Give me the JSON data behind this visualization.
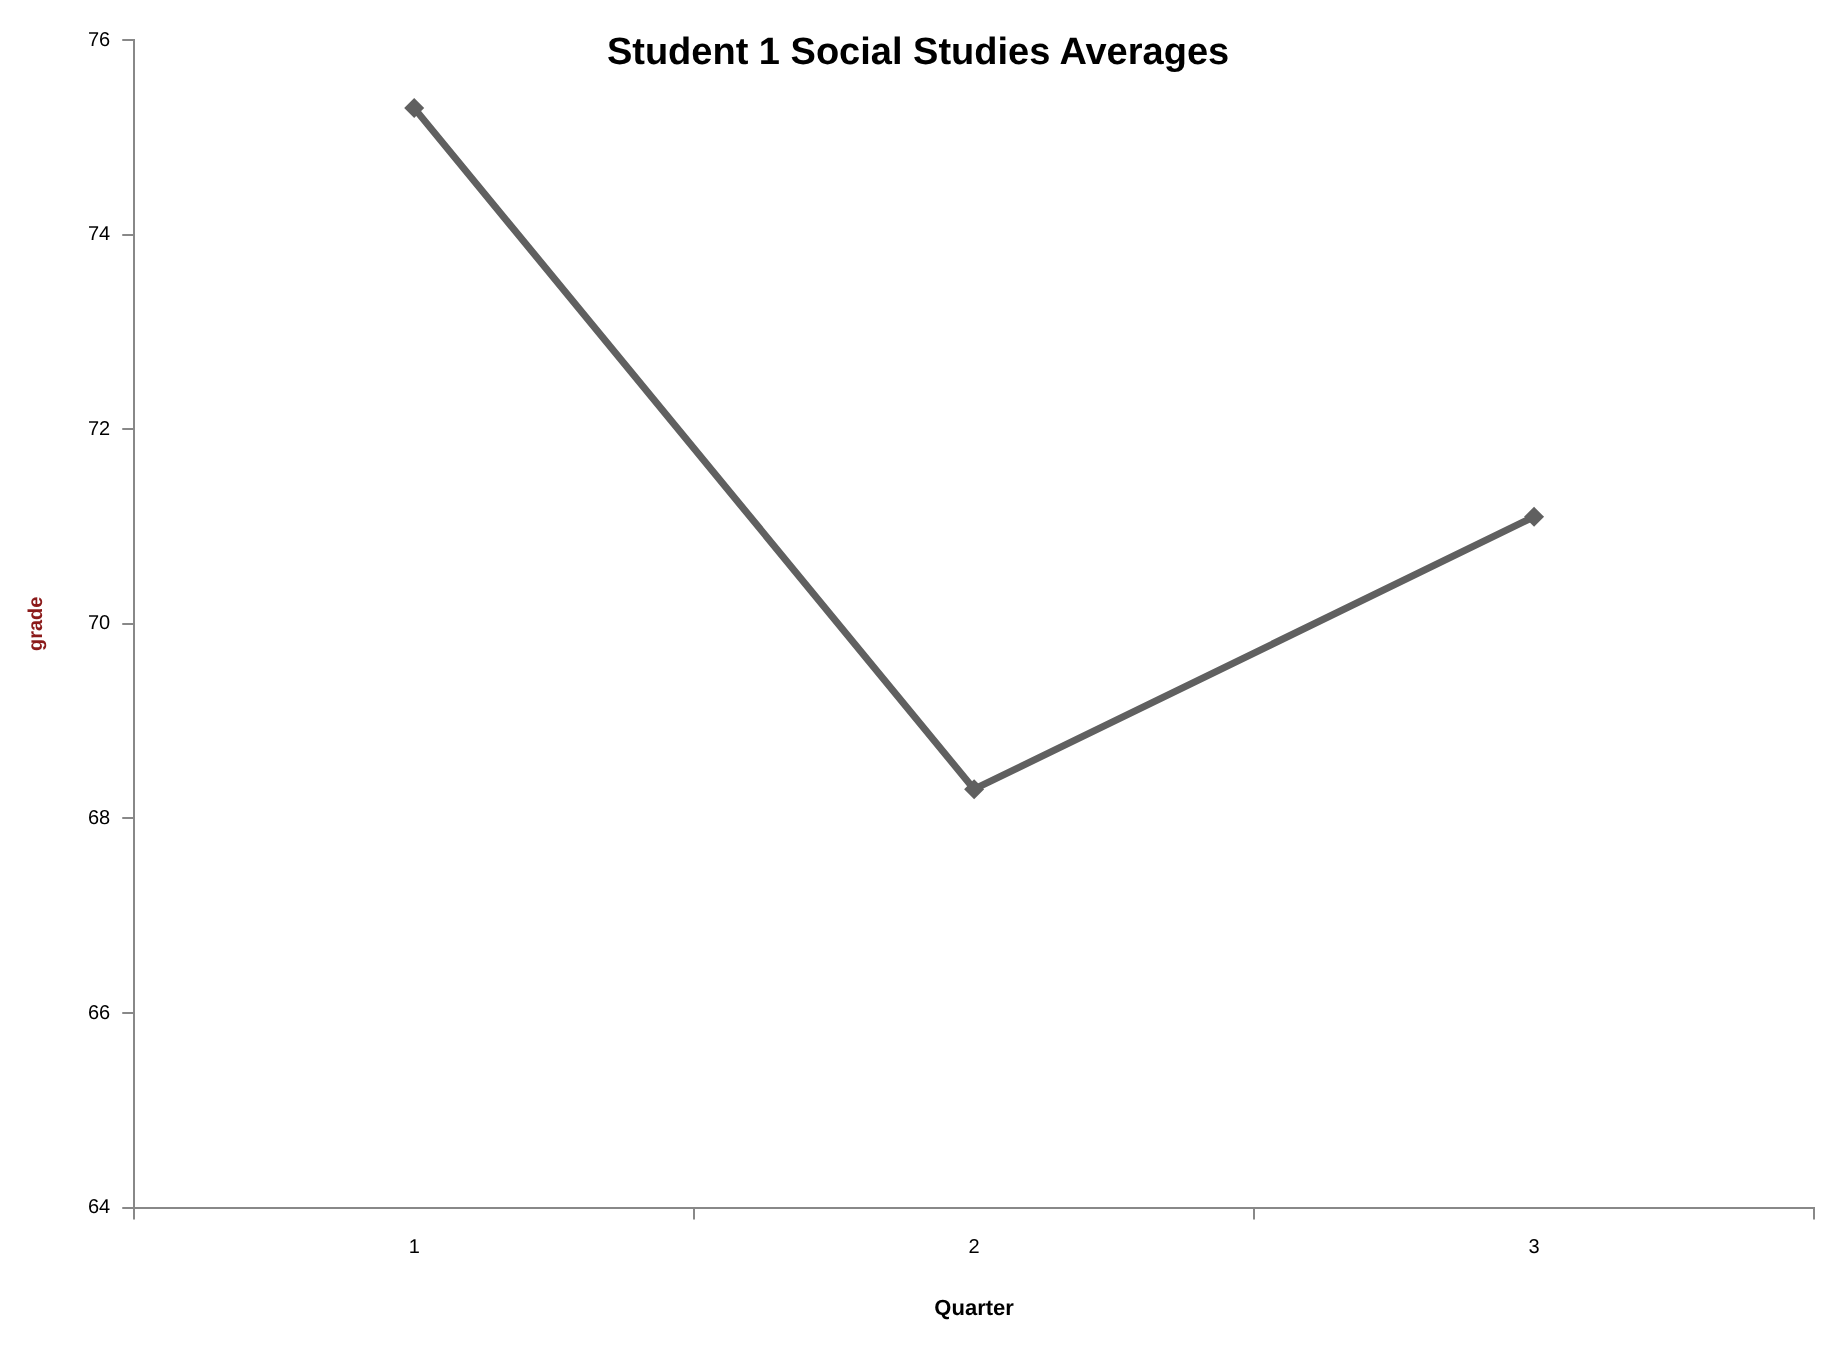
{
  "chart_data": {
    "type": "line",
    "title": "Student 1 Social Studies Averages",
    "xlabel": "Quarter",
    "ylabel": "grade",
    "categories": [
      "1",
      "2",
      "3"
    ],
    "series": [
      {
        "color": "#606060",
        "values": [
          75.3,
          68.3,
          71.1
        ]
      }
    ],
    "ylim": [
      64,
      76
    ],
    "yticks": [
      64,
      66,
      68,
      70,
      72,
      74,
      76
    ],
    "grid": false,
    "legend": false,
    "marker": "diamond",
    "line_style": "solid"
  }
}
